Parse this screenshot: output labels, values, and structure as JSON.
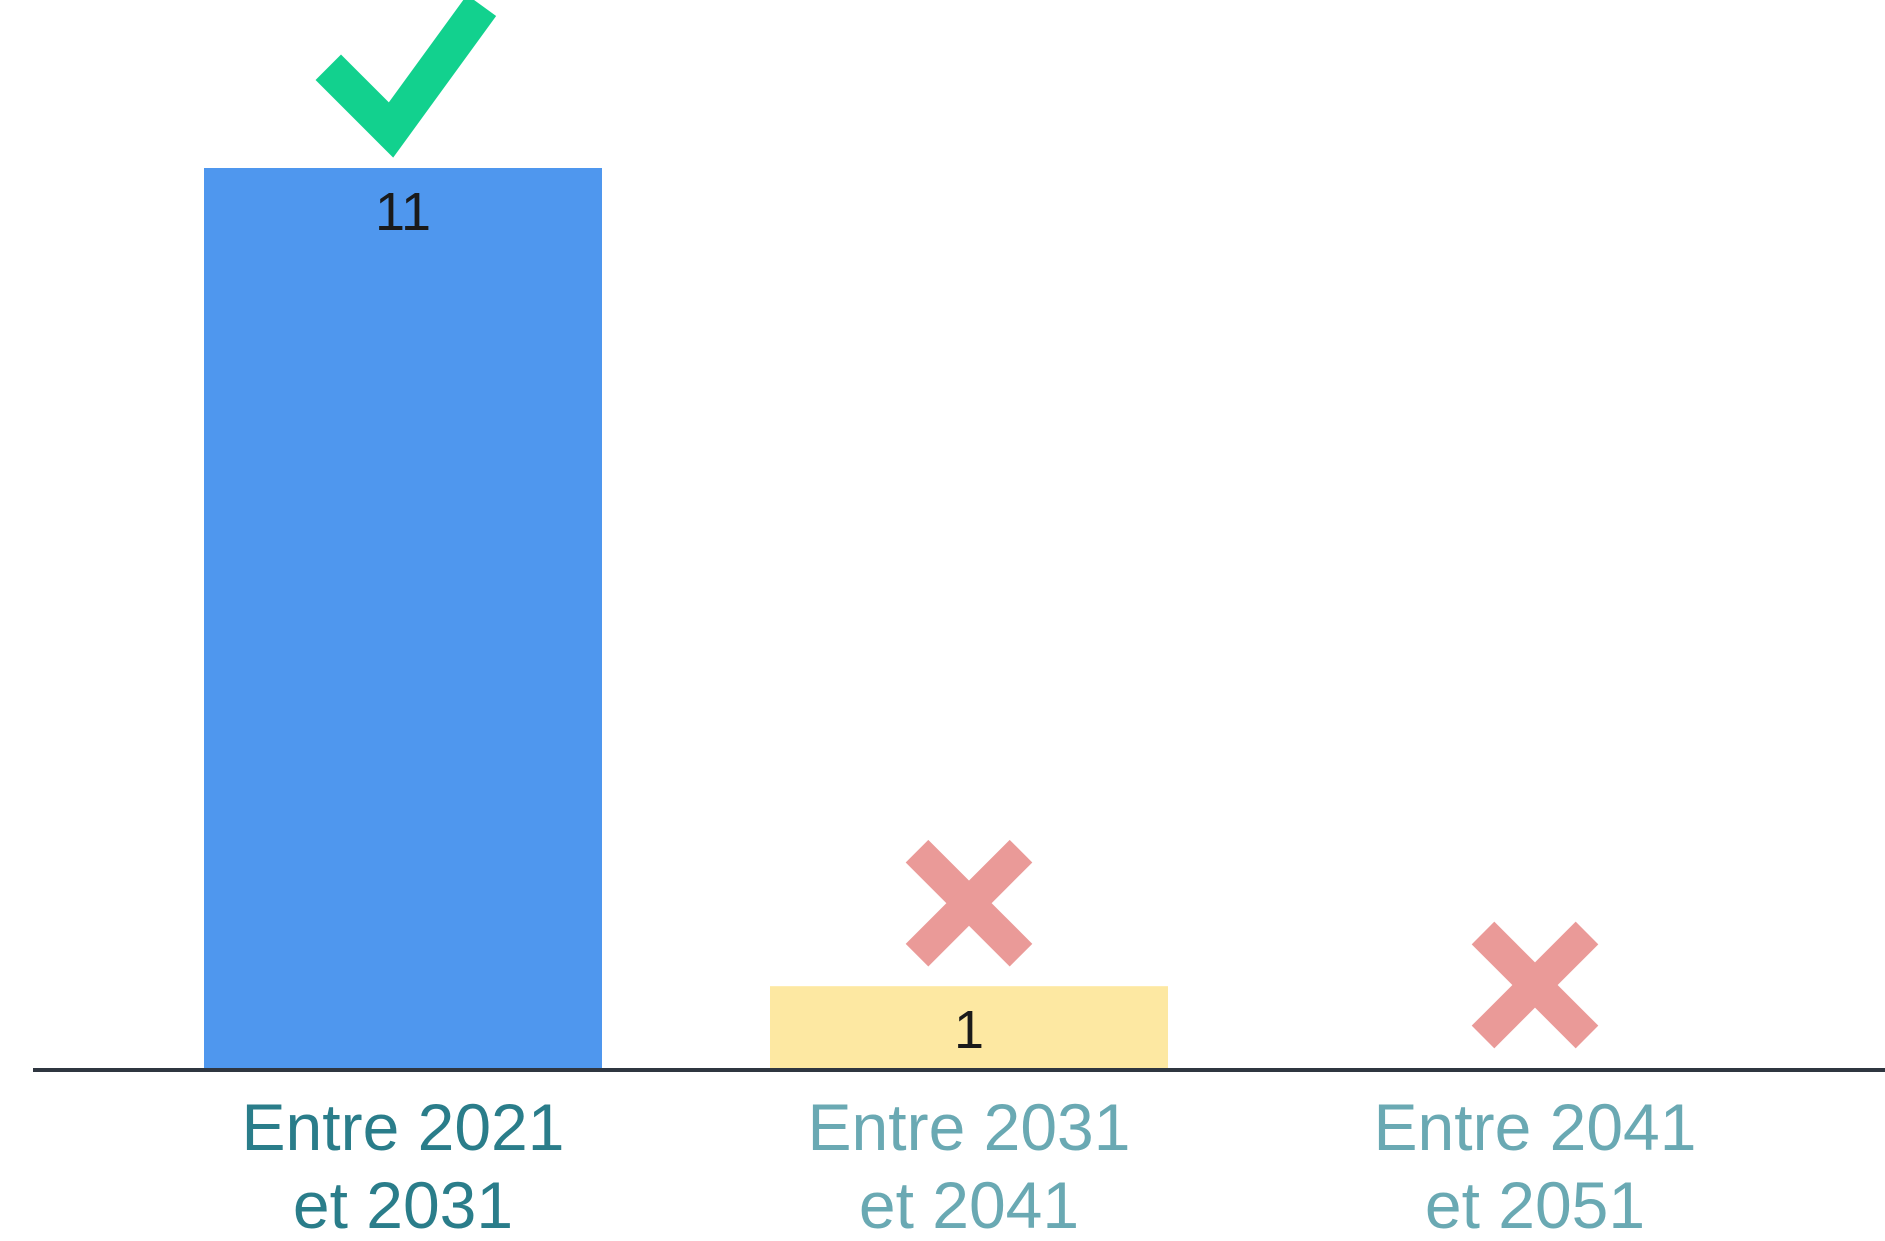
{
  "chart_data": {
    "type": "bar",
    "categories": [
      {
        "line1": "Entre 2021",
        "line2": "et 2031"
      },
      {
        "line1": "Entre 2031",
        "line2": "et 2041"
      },
      {
        "line1": "Entre 2041",
        "line2": "et 2051"
      }
    ],
    "values": [
      11,
      1,
      0
    ],
    "data_labels": [
      "11",
      "1",
      ""
    ],
    "markers": [
      "check-icon",
      "cross-icon",
      "cross-icon"
    ],
    "ylim": [
      0,
      11
    ],
    "grid": false,
    "legend": "none",
    "colors": {
      "bars": [
        "#4f97ee",
        "#fde8a2",
        "#fde8a2"
      ],
      "category_text": [
        "#2a7d8a",
        "#6aa9b3",
        "#6aa9b3"
      ],
      "check": "#12d18e",
      "cross": "#ea9a98",
      "axis": "#2f3640"
    }
  }
}
